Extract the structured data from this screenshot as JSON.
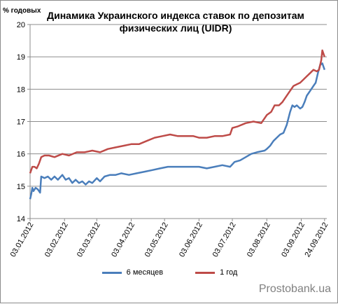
{
  "chart_data": {
    "type": "line",
    "title_lines": [
      "Динамика Украинского индекса ставок по депозитам",
      "физических лиц (UIDR)"
    ],
    "ylabel": "% годовых",
    "xlabel": "",
    "ylim": [
      14,
      20
    ],
    "yticks": [
      14,
      15,
      16,
      17,
      18,
      19,
      20
    ],
    "grid": "horizontal",
    "legend_position": "bottom",
    "x_tick_labels": [
      {
        "date": "2012-01-03",
        "label": "03.01.2012"
      },
      {
        "date": "2012-02-03",
        "label": "03.02.2012"
      },
      {
        "date": "2012-03-03",
        "label": "03.03.2012"
      },
      {
        "date": "2012-04-03",
        "label": "03.04.2012"
      },
      {
        "date": "2012-05-03",
        "label": "03.05.2012"
      },
      {
        "date": "2012-06-03",
        "label": "03.06.2012"
      },
      {
        "date": "2012-07-03",
        "label": "03.07.2012"
      },
      {
        "date": "2012-08-03",
        "label": "03.08.2012"
      },
      {
        "date": "2012-09-03",
        "label": "03.09.2012"
      },
      {
        "date": "2012-09-24",
        "label": "24.09.2012"
      }
    ],
    "series": [
      {
        "name": "6 месяцев",
        "color": "#4a7ebb",
        "points": [
          [
            "2012-01-03",
            14.6
          ],
          [
            "2012-01-04",
            14.75
          ],
          [
            "2012-01-05",
            14.95
          ],
          [
            "2012-01-06",
            14.85
          ],
          [
            "2012-01-08",
            14.95
          ],
          [
            "2012-01-10",
            14.9
          ],
          [
            "2012-01-12",
            14.8
          ],
          [
            "2012-01-13",
            15.3
          ],
          [
            "2012-01-16",
            15.25
          ],
          [
            "2012-01-19",
            15.3
          ],
          [
            "2012-01-22",
            15.2
          ],
          [
            "2012-01-25",
            15.3
          ],
          [
            "2012-01-28",
            15.2
          ],
          [
            "2012-02-01",
            15.35
          ],
          [
            "2012-02-04",
            15.2
          ],
          [
            "2012-02-07",
            15.25
          ],
          [
            "2012-02-10",
            15.1
          ],
          [
            "2012-02-13",
            15.2
          ],
          [
            "2012-02-16",
            15.1
          ],
          [
            "2012-02-19",
            15.15
          ],
          [
            "2012-02-22",
            15.05
          ],
          [
            "2012-02-25",
            15.15
          ],
          [
            "2012-02-28",
            15.1
          ],
          [
            "2012-03-03",
            15.25
          ],
          [
            "2012-03-06",
            15.15
          ],
          [
            "2012-03-10",
            15.3
          ],
          [
            "2012-03-15",
            15.35
          ],
          [
            "2012-03-20",
            15.35
          ],
          [
            "2012-03-25",
            15.4
          ],
          [
            "2012-04-01",
            15.35
          ],
          [
            "2012-04-08",
            15.4
          ],
          [
            "2012-04-15",
            15.45
          ],
          [
            "2012-04-22",
            15.5
          ],
          [
            "2012-04-29",
            15.55
          ],
          [
            "2012-05-06",
            15.6
          ],
          [
            "2012-05-15",
            15.6
          ],
          [
            "2012-05-25",
            15.6
          ],
          [
            "2012-06-03",
            15.6
          ],
          [
            "2012-06-10",
            15.55
          ],
          [
            "2012-06-17",
            15.6
          ],
          [
            "2012-06-24",
            15.65
          ],
          [
            "2012-07-01",
            15.6
          ],
          [
            "2012-07-05",
            15.75
          ],
          [
            "2012-07-10",
            15.8
          ],
          [
            "2012-07-15",
            15.9
          ],
          [
            "2012-07-20",
            16.0
          ],
          [
            "2012-07-25",
            16.05
          ],
          [
            "2012-08-01",
            16.1
          ],
          [
            "2012-08-03",
            16.15
          ],
          [
            "2012-08-06",
            16.25
          ],
          [
            "2012-08-09",
            16.4
          ],
          [
            "2012-08-12",
            16.5
          ],
          [
            "2012-08-15",
            16.6
          ],
          [
            "2012-08-18",
            16.65
          ],
          [
            "2012-08-21",
            16.9
          ],
          [
            "2012-08-24",
            17.3
          ],
          [
            "2012-08-26",
            17.5
          ],
          [
            "2012-08-28",
            17.45
          ],
          [
            "2012-08-30",
            17.5
          ],
          [
            "2012-09-02",
            17.4
          ],
          [
            "2012-09-04",
            17.45
          ],
          [
            "2012-09-06",
            17.6
          ],
          [
            "2012-09-08",
            17.8
          ],
          [
            "2012-09-10",
            17.9
          ],
          [
            "2012-09-12",
            18.0
          ],
          [
            "2012-09-14",
            18.1
          ],
          [
            "2012-09-16",
            18.2
          ],
          [
            "2012-09-18",
            18.5
          ],
          [
            "2012-09-20",
            18.75
          ],
          [
            "2012-09-22",
            18.8
          ],
          [
            "2012-09-24",
            18.6
          ]
        ]
      },
      {
        "name": "1 год",
        "color": "#be4b48",
        "points": [
          [
            "2012-01-03",
            15.4
          ],
          [
            "2012-01-04",
            15.5
          ],
          [
            "2012-01-05",
            15.6
          ],
          [
            "2012-01-07",
            15.6
          ],
          [
            "2012-01-09",
            15.55
          ],
          [
            "2012-01-11",
            15.7
          ],
          [
            "2012-01-13",
            15.9
          ],
          [
            "2012-01-16",
            15.95
          ],
          [
            "2012-01-20",
            15.95
          ],
          [
            "2012-01-25",
            15.9
          ],
          [
            "2012-02-01",
            16.0
          ],
          [
            "2012-02-07",
            15.95
          ],
          [
            "2012-02-14",
            16.05
          ],
          [
            "2012-02-21",
            16.05
          ],
          [
            "2012-02-28",
            16.1
          ],
          [
            "2012-03-06",
            16.05
          ],
          [
            "2012-03-13",
            16.15
          ],
          [
            "2012-03-20",
            16.2
          ],
          [
            "2012-03-27",
            16.25
          ],
          [
            "2012-04-03",
            16.3
          ],
          [
            "2012-04-10",
            16.3
          ],
          [
            "2012-04-17",
            16.4
          ],
          [
            "2012-04-24",
            16.5
          ],
          [
            "2012-05-01",
            16.55
          ],
          [
            "2012-05-08",
            16.6
          ],
          [
            "2012-05-15",
            16.55
          ],
          [
            "2012-05-22",
            16.55
          ],
          [
            "2012-05-29",
            16.55
          ],
          [
            "2012-06-03",
            16.5
          ],
          [
            "2012-06-10",
            16.5
          ],
          [
            "2012-06-17",
            16.55
          ],
          [
            "2012-06-24",
            16.55
          ],
          [
            "2012-07-01",
            16.6
          ],
          [
            "2012-07-03",
            16.8
          ],
          [
            "2012-07-08",
            16.85
          ],
          [
            "2012-07-15",
            16.95
          ],
          [
            "2012-07-22",
            17.0
          ],
          [
            "2012-07-29",
            16.95
          ],
          [
            "2012-08-03",
            17.2
          ],
          [
            "2012-08-07",
            17.3
          ],
          [
            "2012-08-10",
            17.5
          ],
          [
            "2012-08-14",
            17.5
          ],
          [
            "2012-08-17",
            17.6
          ],
          [
            "2012-08-21",
            17.8
          ],
          [
            "2012-08-24",
            17.95
          ],
          [
            "2012-08-27",
            18.1
          ],
          [
            "2012-08-30",
            18.15
          ],
          [
            "2012-09-02",
            18.2
          ],
          [
            "2012-09-05",
            18.3
          ],
          [
            "2012-09-08",
            18.4
          ],
          [
            "2012-09-11",
            18.5
          ],
          [
            "2012-09-14",
            18.6
          ],
          [
            "2012-09-17",
            18.55
          ],
          [
            "2012-09-19",
            18.6
          ],
          [
            "2012-09-21",
            18.9
          ],
          [
            "2012-09-22",
            19.2
          ],
          [
            "2012-09-23",
            19.1
          ],
          [
            "2012-09-24",
            19.0
          ]
        ]
      }
    ]
  },
  "watermark": "Prostobank.ua"
}
